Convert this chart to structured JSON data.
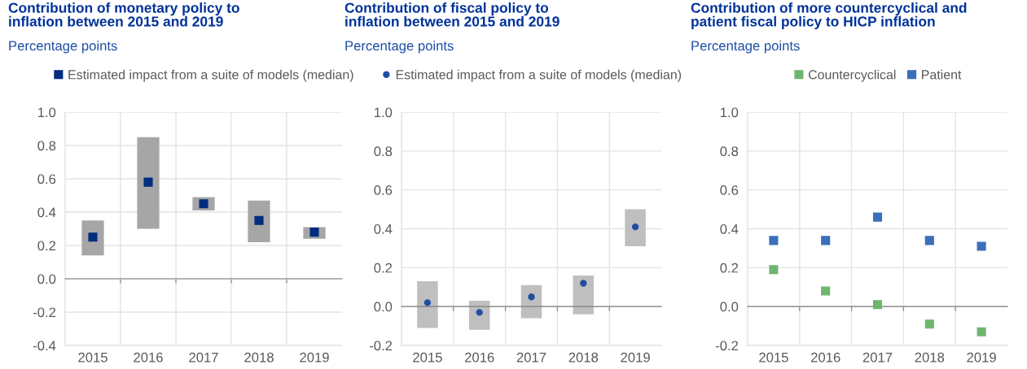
{
  "chart_data": [
    {
      "type": "bar",
      "title": "Contribution of monetary policy to\ninflation between 2015 and 2019",
      "subtitle": "Percentage points",
      "categories": [
        "2015",
        "2016",
        "2017",
        "2018",
        "2019"
      ],
      "ylim": [
        -0.4,
        1.0
      ],
      "yticks": [
        {
          "value": -0.4,
          "label": "-0.4"
        },
        {
          "value": -0.2,
          "label": "-0.2"
        },
        {
          "value": 0,
          "label": "0.0"
        },
        {
          "value": 0.2,
          "label": "0.2"
        },
        {
          "value": 0.4,
          "label": "0.4"
        },
        {
          "value": 0.6,
          "label": "0.6"
        },
        {
          "value": 0.8,
          "label": "0.8"
        },
        {
          "value": 1.0,
          "label": "1.0"
        }
      ],
      "grid": true,
      "legend": "top",
      "marker": "square",
      "series": [
        {
          "type": "bar",
          "color": "#a6a6a6",
          "base": [
            0.14,
            0.3,
            0.41,
            0.22,
            0.24
          ],
          "values": [
            0.21,
            0.55,
            0.08,
            0.25,
            0.07
          ]
        },
        {
          "type": "scatter",
          "name": "Estimated impact from a suite of models (median)",
          "color": "#002d80",
          "values": [
            0.25,
            0.58,
            0.45,
            0.35,
            0.28
          ]
        }
      ]
    },
    {
      "type": "bar",
      "title": "Contribution of fiscal policy to\ninflation between 2015 and 2019",
      "subtitle": "Percentage points",
      "categories": [
        "2015",
        "2016",
        "2017",
        "2018",
        "2019"
      ],
      "ylim": [
        -0.2,
        1.0
      ],
      "yticks": [
        {
          "value": -0.2,
          "label": "-0.2"
        },
        {
          "value": 0,
          "label": "0.0"
        },
        {
          "value": 0.2,
          "label": "0.2"
        },
        {
          "value": 0.4,
          "label": "0.4"
        },
        {
          "value": 0.6,
          "label": "0.6"
        },
        {
          "value": 0.8,
          "label": "0.8"
        },
        {
          "value": 1.0,
          "label": "1.0"
        }
      ],
      "grid": true,
      "legend": "top",
      "marker": "circle",
      "series": [
        {
          "type": "bar",
          "color": "#bfbfbf",
          "base": [
            -0.11,
            -0.12,
            -0.06,
            -0.04,
            0.31
          ],
          "values": [
            0.24,
            0.15,
            0.17,
            0.2,
            0.19
          ]
        },
        {
          "type": "scatter",
          "name": "Estimated impact from a suite of models (median)",
          "color": "#1f4ea3",
          "values": [
            0.02,
            -0.03,
            0.05,
            0.12,
            0.41
          ]
        }
      ]
    },
    {
      "type": "scatter",
      "title": "Contribution of more countercyclical and\npatient fiscal policy to HICP inflation",
      "subtitle": "Percentage points",
      "categories": [
        "2015",
        "2016",
        "2017",
        "2018",
        "2019"
      ],
      "ylim": [
        -0.2,
        1.0
      ],
      "yticks": [
        {
          "value": -0.2,
          "label": "-0.2"
        },
        {
          "value": 0,
          "label": "0.0"
        },
        {
          "value": 0.2,
          "label": "0.2"
        },
        {
          "value": 0.4,
          "label": "0.4"
        },
        {
          "value": 0.6,
          "label": "0.6"
        },
        {
          "value": 0.8,
          "label": "0.8"
        },
        {
          "value": 1.0,
          "label": "1.0"
        }
      ],
      "grid": true,
      "legend": "top",
      "marker": "square",
      "series": [
        {
          "name": "Countercyclical",
          "color": "#6fb56f",
          "values": [
            0.19,
            0.08,
            0.01,
            -0.09,
            -0.13
          ]
        },
        {
          "name": "Patient",
          "color": "#3a6fba",
          "values": [
            0.34,
            0.34,
            0.46,
            0.34,
            0.31
          ]
        }
      ]
    }
  ]
}
